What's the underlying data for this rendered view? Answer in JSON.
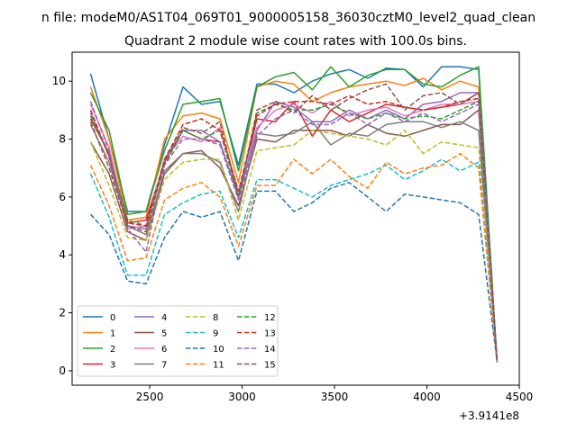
{
  "suptitle": "n file: modeM0/AS1T04_069T01_9000005158_36030cztM0_level2_quad_clean",
  "chart_data": {
    "type": "line",
    "title": "Quadrant 2 module wise count rates with 100.0s bins.",
    "xlabel": "",
    "ylabel": "",
    "x_offset_label": "+3.9141e8",
    "xlim": [
      2080,
      4500
    ],
    "ylim": [
      -0.5,
      11.0
    ],
    "xticks": [
      2500,
      3000,
      3500,
      4000,
      4500
    ],
    "yticks": [
      0,
      2,
      4,
      6,
      8,
      10
    ],
    "legend_position": "lower-left",
    "legend_columns": 4,
    "x": [
      2180,
      2280,
      2380,
      2480,
      2580,
      2680,
      2780,
      2880,
      2980,
      3080,
      3180,
      3280,
      3380,
      3480,
      3580,
      3680,
      3780,
      3880,
      3980,
      4080,
      4180,
      4280,
      4380
    ],
    "series": [
      {
        "name": "0",
        "color": "#1f77b4",
        "dash": "solid",
        "values": [
          10.25,
          8.0,
          5.5,
          5.5,
          7.8,
          9.8,
          9.2,
          9.3,
          7.1,
          9.9,
          9.9,
          9.6,
          10.0,
          10.25,
          10.4,
          10.1,
          10.45,
          10.4,
          9.8,
          10.5,
          10.5,
          10.4,
          0.3
        ]
      },
      {
        "name": "1",
        "color": "#ff7f0e",
        "dash": "solid",
        "values": [
          9.8,
          8.0,
          5.2,
          5.3,
          8.0,
          8.8,
          8.9,
          8.7,
          6.5,
          9.8,
          10.0,
          9.9,
          9.3,
          9.6,
          9.8,
          9.9,
          10.0,
          9.85,
          10.1,
          9.7,
          10.0,
          9.8,
          0.3
        ]
      },
      {
        "name": "2",
        "color": "#2ca02c",
        "dash": "solid",
        "values": [
          9.6,
          8.3,
          5.4,
          5.5,
          7.6,
          9.2,
          9.3,
          9.4,
          6.9,
          9.8,
          10.15,
          10.3,
          9.7,
          10.5,
          9.8,
          10.2,
          10.4,
          10.4,
          9.9,
          9.8,
          10.2,
          10.5,
          0.3
        ]
      },
      {
        "name": "3",
        "color": "#d62728",
        "dash": "solid",
        "values": [
          8.7,
          7.5,
          5.1,
          5.2,
          7.2,
          8.3,
          8.0,
          7.9,
          6.0,
          8.7,
          8.6,
          9.3,
          8.1,
          9.0,
          8.6,
          8.9,
          9.2,
          9.1,
          9.0,
          9.1,
          9.2,
          9.6,
          0.3
        ]
      },
      {
        "name": "4",
        "color": "#9467bd",
        "dash": "solid",
        "values": [
          8.9,
          7.4,
          5.0,
          4.9,
          7.3,
          8.3,
          8.3,
          7.9,
          6.0,
          8.3,
          9.3,
          9.1,
          8.6,
          8.6,
          9.0,
          8.7,
          9.0,
          8.7,
          9.2,
          9.3,
          9.6,
          9.6,
          0.3
        ]
      },
      {
        "name": "5",
        "color": "#8c564b",
        "dash": "solid",
        "values": [
          7.9,
          6.8,
          4.8,
          4.5,
          6.8,
          7.5,
          7.6,
          7.0,
          5.7,
          8.0,
          7.9,
          8.3,
          8.3,
          8.3,
          8.1,
          8.5,
          8.2,
          8.1,
          8.3,
          8.5,
          8.5,
          9.0,
          0.3
        ]
      },
      {
        "name": "6",
        "color": "#e377c2",
        "dash": "solid",
        "values": [
          9.2,
          7.7,
          4.9,
          5.0,
          7.3,
          8.1,
          7.9,
          8.4,
          6.2,
          8.4,
          9.0,
          9.2,
          8.9,
          9.3,
          8.8,
          9.0,
          9.1,
          8.8,
          9.0,
          9.2,
          9.2,
          9.3,
          0.3
        ]
      },
      {
        "name": "7",
        "color": "#7f7f7f",
        "dash": "solid",
        "values": [
          8.5,
          7.2,
          5.0,
          4.7,
          6.9,
          7.5,
          7.5,
          7.2,
          5.5,
          8.2,
          8.1,
          8.2,
          8.6,
          7.8,
          8.2,
          8.1,
          8.5,
          8.6,
          8.6,
          8.4,
          8.6,
          8.3,
          0.3
        ]
      },
      {
        "name": "8",
        "color": "#bcbd22",
        "dash": "dash",
        "values": [
          7.9,
          6.4,
          4.6,
          4.5,
          6.6,
          7.2,
          7.3,
          7.3,
          5.2,
          7.6,
          7.7,
          7.8,
          8.3,
          8.2,
          8.1,
          8.0,
          7.8,
          8.3,
          7.5,
          7.9,
          7.8,
          7.7,
          0.3
        ]
      },
      {
        "name": "9",
        "color": "#17becf",
        "dash": "dash",
        "values": [
          6.8,
          5.3,
          3.3,
          3.3,
          5.4,
          5.8,
          6.1,
          6.2,
          4.6,
          6.6,
          6.6,
          6.3,
          6.0,
          6.4,
          6.6,
          6.8,
          7.1,
          6.6,
          6.9,
          7.3,
          6.9,
          7.2,
          0.3
        ]
      },
      {
        "name": "10",
        "color": "#1f77b4",
        "dash": "dash",
        "values": [
          5.4,
          4.7,
          3.1,
          3.0,
          4.6,
          5.5,
          5.3,
          5.5,
          3.8,
          6.2,
          6.2,
          5.5,
          5.8,
          6.3,
          6.5,
          6.0,
          5.5,
          6.1,
          6.0,
          5.9,
          5.8,
          5.4,
          0.3
        ]
      },
      {
        "name": "11",
        "color": "#ff7f0e",
        "dash": "dash",
        "values": [
          7.1,
          5.7,
          3.8,
          3.9,
          5.9,
          6.3,
          6.5,
          6.0,
          4.3,
          6.4,
          6.4,
          7.3,
          6.8,
          7.3,
          6.7,
          6.3,
          7.2,
          6.8,
          7.0,
          7.1,
          7.5,
          7.0,
          0.3
        ]
      },
      {
        "name": "12",
        "color": "#2ca02c",
        "dash": "dash",
        "values": [
          8.8,
          7.5,
          5.2,
          5.0,
          7.1,
          8.3,
          8.0,
          8.3,
          6.0,
          8.9,
          9.2,
          9.0,
          9.0,
          9.2,
          8.9,
          8.7,
          8.9,
          8.7,
          8.8,
          8.7,
          9.0,
          9.3,
          0.3
        ]
      },
      {
        "name": "13",
        "color": "#d62728",
        "dash": "dash",
        "values": [
          9.0,
          7.4,
          5.1,
          5.0,
          7.3,
          8.5,
          8.7,
          8.3,
          6.2,
          8.8,
          9.2,
          9.3,
          9.3,
          9.2,
          9.5,
          9.2,
          9.3,
          9.1,
          9.0,
          9.1,
          9.3,
          9.4,
          0.3
        ]
      },
      {
        "name": "14",
        "color": "#9467bd",
        "dash": "dash",
        "values": [
          9.3,
          7.6,
          4.9,
          4.1,
          7.1,
          8.0,
          8.0,
          7.8,
          5.9,
          8.1,
          8.7,
          9.0,
          8.5,
          8.5,
          8.9,
          8.5,
          8.9,
          8.6,
          8.9,
          8.6,
          8.9,
          9.2,
          0.3
        ]
      },
      {
        "name": "15",
        "color": "#8c564b",
        "dash": "dash",
        "values": [
          8.6,
          7.0,
          5.0,
          4.8,
          7.2,
          8.4,
          8.2,
          8.6,
          6.0,
          9.0,
          9.3,
          8.9,
          9.5,
          9.0,
          9.4,
          9.7,
          9.9,
          9.0,
          9.5,
          9.6,
          9.2,
          9.6,
          0.3
        ]
      }
    ]
  }
}
